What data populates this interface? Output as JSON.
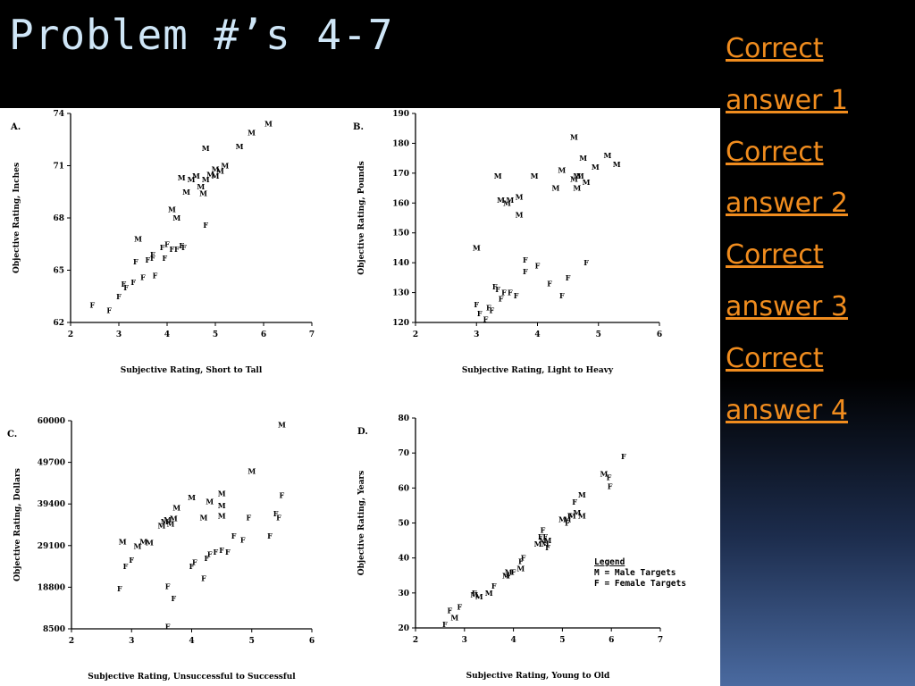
{
  "slide": {
    "title": "Problem #’s 4-7",
    "links": [
      {
        "line1": "Correct",
        "line2": "answer 1"
      },
      {
        "line1": "Correct",
        "line2": "answer 2"
      },
      {
        "line1": "Correct",
        "line2": "answer 3"
      },
      {
        "line1": "Correct",
        "line2": "answer 4"
      }
    ],
    "colors": {
      "title": "#cfe6f7",
      "link": "#f08c1e",
      "background": "#000000",
      "panel": "#ffffff"
    }
  },
  "legend": {
    "title": "Legend",
    "lines": [
      "M = Male Targets",
      "F = Female Targets"
    ]
  },
  "chart_data": [
    {
      "type": "scatter",
      "panel": "A.",
      "xlabel": "Subjective Rating, Short to Tall",
      "ylabel": "Objective Rating, Inches",
      "xlim": [
        2,
        7
      ],
      "ylim": [
        62,
        74
      ],
      "xticks": [
        "2",
        "3",
        "4",
        "5",
        "6",
        "7"
      ],
      "yticks": [
        "62",
        "65",
        "68",
        "71",
        "74"
      ],
      "series": [
        {
          "marker": "M",
          "points": [
            [
              3.4,
              66.8
            ],
            [
              4.1,
              68.5
            ],
            [
              4.2,
              68
            ],
            [
              4.3,
              70.3
            ],
            [
              4.4,
              69.5
            ],
            [
              4.5,
              70.2
            ],
            [
              4.6,
              70.4
            ],
            [
              4.7,
              69.8
            ],
            [
              4.8,
              70.2
            ],
            [
              4.9,
              70.5
            ],
            [
              5,
              70.8
            ],
            [
              5.1,
              70.7
            ],
            [
              5.2,
              71
            ],
            [
              4.8,
              72
            ],
            [
              5.5,
              72.1
            ],
            [
              5.75,
              72.9
            ],
            [
              6.1,
              73.4
            ],
            [
              4.75,
              69.4
            ],
            [
              5,
              70.4
            ]
          ]
        },
        {
          "marker": "F",
          "points": [
            [
              2.45,
              63
            ],
            [
              2.8,
              62.7
            ],
            [
              3,
              63.5
            ],
            [
              3.1,
              64.2
            ],
            [
              3.15,
              64
            ],
            [
              3.3,
              64.3
            ],
            [
              3.35,
              65.5
            ],
            [
              3.5,
              64.6
            ],
            [
              3.6,
              65.6
            ],
            [
              3.7,
              65.9
            ],
            [
              3.75,
              64.7
            ],
            [
              3.9,
              66.3
            ],
            [
              3.95,
              65.7
            ],
            [
              4,
              66.5
            ],
            [
              4.1,
              66.2
            ],
            [
              4.2,
              66.2
            ],
            [
              4.3,
              66.4
            ],
            [
              4.35,
              66.3
            ],
            [
              4.8,
              67.6
            ],
            [
              3.7,
              65.7
            ]
          ]
        }
      ]
    },
    {
      "type": "scatter",
      "panel": "B.",
      "xlabel": "Subjective Rating, Light to Heavy",
      "ylabel": "Objective Rating, Pounds",
      "xlim": [
        2,
        6
      ],
      "ylim": [
        120,
        190
      ],
      "xticks": [
        "2",
        "3",
        "4",
        "5",
        "6"
      ],
      "yticks": [
        "120",
        "130",
        "140",
        "150",
        "160",
        "170",
        "180",
        "190"
      ],
      "series": [
        {
          "marker": "M",
          "points": [
            [
              3,
              145
            ],
            [
              3.35,
              169
            ],
            [
              3.4,
              161
            ],
            [
              3.5,
              160
            ],
            [
              3.55,
              161
            ],
            [
              3.7,
              162
            ],
            [
              3.7,
              156
            ],
            [
              3.95,
              169
            ],
            [
              4.3,
              165
            ],
            [
              4.4,
              171
            ],
            [
              4.6,
              182
            ],
            [
              4.6,
              168
            ],
            [
              4.65,
              169
            ],
            [
              4.65,
              165
            ],
            [
              4.7,
              169
            ],
            [
              4.75,
              175
            ],
            [
              4.8,
              167
            ],
            [
              4.95,
              172
            ],
            [
              5.15,
              176
            ],
            [
              5.3,
              173
            ]
          ]
        },
        {
          "marker": "F",
          "points": [
            [
              3,
              126
            ],
            [
              3.05,
              123
            ],
            [
              3.15,
              121
            ],
            [
              3.2,
              125
            ],
            [
              3.25,
              124
            ],
            [
              3.3,
              132
            ],
            [
              3.35,
              131
            ],
            [
              3.4,
              128
            ],
            [
              3.45,
              130
            ],
            [
              3.55,
              130
            ],
            [
              3.65,
              129
            ],
            [
              3.8,
              137
            ],
            [
              3.8,
              141
            ],
            [
              4,
              139
            ],
            [
              4.2,
              133
            ],
            [
              4.4,
              129
            ],
            [
              4.5,
              135
            ],
            [
              4.8,
              140
            ]
          ]
        }
      ]
    },
    {
      "type": "scatter",
      "panel": "C.",
      "xlabel": "Subjective Rating, Unsuccessful to Successful",
      "ylabel": "Objective Rating, Dollars",
      "xlim": [
        2,
        6
      ],
      "ylim": [
        8500,
        60000
      ],
      "xticks": [
        "2",
        "3",
        "4",
        "5",
        "6"
      ],
      "yticks": [
        "8500",
        "18800",
        "29100",
        "39400",
        "49700",
        "60000"
      ],
      "series": [
        {
          "marker": "M",
          "points": [
            [
              2.85,
              30000
            ],
            [
              3.1,
              29000
            ],
            [
              3.2,
              30000
            ],
            [
              3.3,
              29800
            ],
            [
              3.5,
              34000
            ],
            [
              3.55,
              35000
            ],
            [
              3.6,
              35500
            ],
            [
              3.65,
              34500
            ],
            [
              3.7,
              35800
            ],
            [
              3.75,
              38500
            ],
            [
              4,
              41000
            ],
            [
              4.2,
              36000
            ],
            [
              4.3,
              40000
            ],
            [
              4.5,
              42000
            ],
            [
              4.5,
              39000
            ],
            [
              4.5,
              36500
            ],
            [
              5,
              47500
            ],
            [
              5.5,
              59000
            ]
          ]
        },
        {
          "marker": "F",
          "points": [
            [
              2.8,
              18500
            ],
            [
              2.9,
              24000
            ],
            [
              3,
              25500
            ],
            [
              3.6,
              19000
            ],
            [
              3.6,
              9000
            ],
            [
              3.7,
              16000
            ],
            [
              4,
              24000
            ],
            [
              4.05,
              25000
            ],
            [
              4.2,
              21000
            ],
            [
              4.25,
              26000
            ],
            [
              4.3,
              27000
            ],
            [
              4.4,
              27500
            ],
            [
              4.5,
              28000
            ],
            [
              4.6,
              27500
            ],
            [
              4.7,
              31500
            ],
            [
              4.85,
              30500
            ],
            [
              4.95,
              36000
            ],
            [
              5.3,
              31500
            ],
            [
              5.4,
              37000
            ],
            [
              5.45,
              36000
            ],
            [
              5.5,
              41500
            ]
          ]
        }
      ]
    },
    {
      "type": "scatter",
      "panel": "D.",
      "xlabel": "Subjective Rating, Young to Old",
      "ylabel": "Objective Rating, Years",
      "xlim": [
        2,
        7
      ],
      "ylim": [
        20,
        80
      ],
      "xticks": [
        "2",
        "3",
        "4",
        "5",
        "6",
        "7"
      ],
      "yticks": [
        "20",
        "30",
        "40",
        "50",
        "60",
        "70",
        "80"
      ],
      "series": [
        {
          "marker": "M",
          "points": [
            [
              2.8,
              23
            ],
            [
              3.2,
              29.5
            ],
            [
              3.3,
              29
            ],
            [
              3.5,
              30
            ],
            [
              3.85,
              35
            ],
            [
              3.9,
              36
            ],
            [
              4.15,
              37
            ],
            [
              4.5,
              44
            ],
            [
              4.6,
              45
            ],
            [
              4.65,
              44
            ],
            [
              4.7,
              45
            ],
            [
              5,
              51
            ],
            [
              5.1,
              51
            ],
            [
              5.2,
              52
            ],
            [
              5.3,
              53
            ],
            [
              5.4,
              52
            ],
            [
              5.4,
              58
            ],
            [
              5.85,
              64
            ]
          ]
        },
        {
          "marker": "F",
          "points": [
            [
              2.6,
              21
            ],
            [
              2.7,
              25
            ],
            [
              2.9,
              26
            ],
            [
              3.2,
              30
            ],
            [
              3.6,
              32
            ],
            [
              3.9,
              35
            ],
            [
              4,
              36
            ],
            [
              4.15,
              39
            ],
            [
              4.2,
              40
            ],
            [
              4.55,
              46
            ],
            [
              4.6,
              48
            ],
            [
              4.65,
              46
            ],
            [
              4.7,
              43
            ],
            [
              5.1,
              50
            ],
            [
              5.15,
              52
            ],
            [
              5.25,
              56
            ],
            [
              5.95,
              63
            ],
            [
              5.97,
              60.5
            ],
            [
              6.25,
              69
            ]
          ]
        }
      ]
    }
  ]
}
